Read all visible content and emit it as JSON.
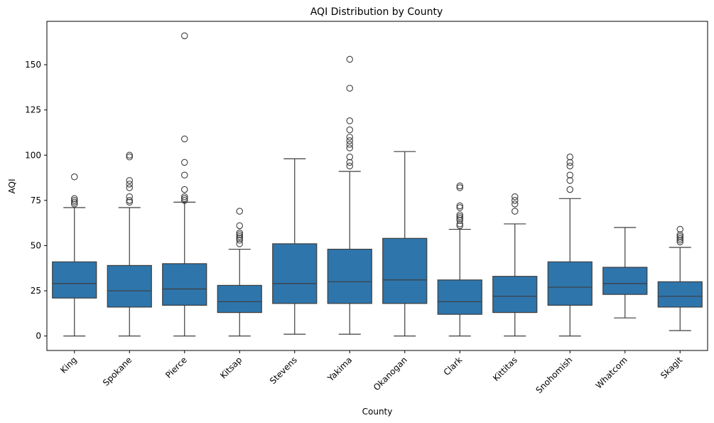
{
  "chart_data": {
    "type": "box",
    "title": "AQI Distribution by County",
    "xlabel": "County",
    "ylabel": "AQI",
    "ylim": [
      -8,
      174
    ],
    "yticks": [
      0,
      25,
      50,
      75,
      100,
      125,
      150
    ],
    "grid": false,
    "box_color": "#2e75ac",
    "line_color": "#3d3d3d",
    "categories": [
      "King",
      "Spokane",
      "Pierce",
      "Kitsap",
      "Stevens",
      "Yakima",
      "Okanogan",
      "Clark",
      "Kittitas",
      "Snohomish",
      "Whatcom",
      "Skagit"
    ],
    "boxes": [
      {
        "q1": 21,
        "median": 29,
        "q3": 41,
        "whisker_low": 0,
        "whisker_high": 71,
        "outliers": [
          73,
          74,
          75,
          76,
          88
        ]
      },
      {
        "q1": 16,
        "median": 25,
        "q3": 39,
        "whisker_low": 0,
        "whisker_high": 71,
        "outliers": [
          74,
          75,
          77,
          82,
          84,
          86,
          99,
          100
        ]
      },
      {
        "q1": 17,
        "median": 26,
        "q3": 40,
        "whisker_low": 0,
        "whisker_high": 74,
        "outliers": [
          75,
          76,
          77,
          81,
          89,
          96,
          109,
          166
        ]
      },
      {
        "q1": 13,
        "median": 19,
        "q3": 28,
        "whisker_low": 0,
        "whisker_high": 48,
        "outliers": [
          51,
          53,
          54,
          55,
          56,
          57,
          61,
          69
        ]
      },
      {
        "q1": 18,
        "median": 29,
        "q3": 51,
        "whisker_low": 1,
        "whisker_high": 98,
        "outliers": []
      },
      {
        "q1": 18,
        "median": 30,
        "q3": 48,
        "whisker_low": 1,
        "whisker_high": 91,
        "outliers": [
          94,
          96,
          99,
          104,
          106,
          108,
          110,
          114,
          119,
          137,
          153
        ]
      },
      {
        "q1": 18,
        "median": 31,
        "q3": 54,
        "whisker_low": 0,
        "whisker_high": 102,
        "outliers": []
      },
      {
        "q1": 12,
        "median": 19,
        "q3": 31,
        "whisker_low": 0,
        "whisker_high": 59,
        "outliers": [
          61,
          62,
          64,
          65,
          66,
          67,
          71,
          72,
          82,
          83
        ]
      },
      {
        "q1": 13,
        "median": 22,
        "q3": 33,
        "whisker_low": 0,
        "whisker_high": 62,
        "outliers": [
          69,
          73,
          75,
          77
        ]
      },
      {
        "q1": 17,
        "median": 27,
        "q3": 41,
        "whisker_low": 0,
        "whisker_high": 76,
        "outliers": [
          81,
          86,
          89,
          94,
          96,
          99
        ]
      },
      {
        "q1": 23,
        "median": 29,
        "q3": 38,
        "whisker_low": 10,
        "whisker_high": 60,
        "outliers": []
      },
      {
        "q1": 16,
        "median": 22,
        "q3": 30,
        "whisker_low": 3,
        "whisker_high": 49,
        "outliers": [
          52,
          53,
          54,
          55,
          56,
          59
        ]
      }
    ]
  }
}
